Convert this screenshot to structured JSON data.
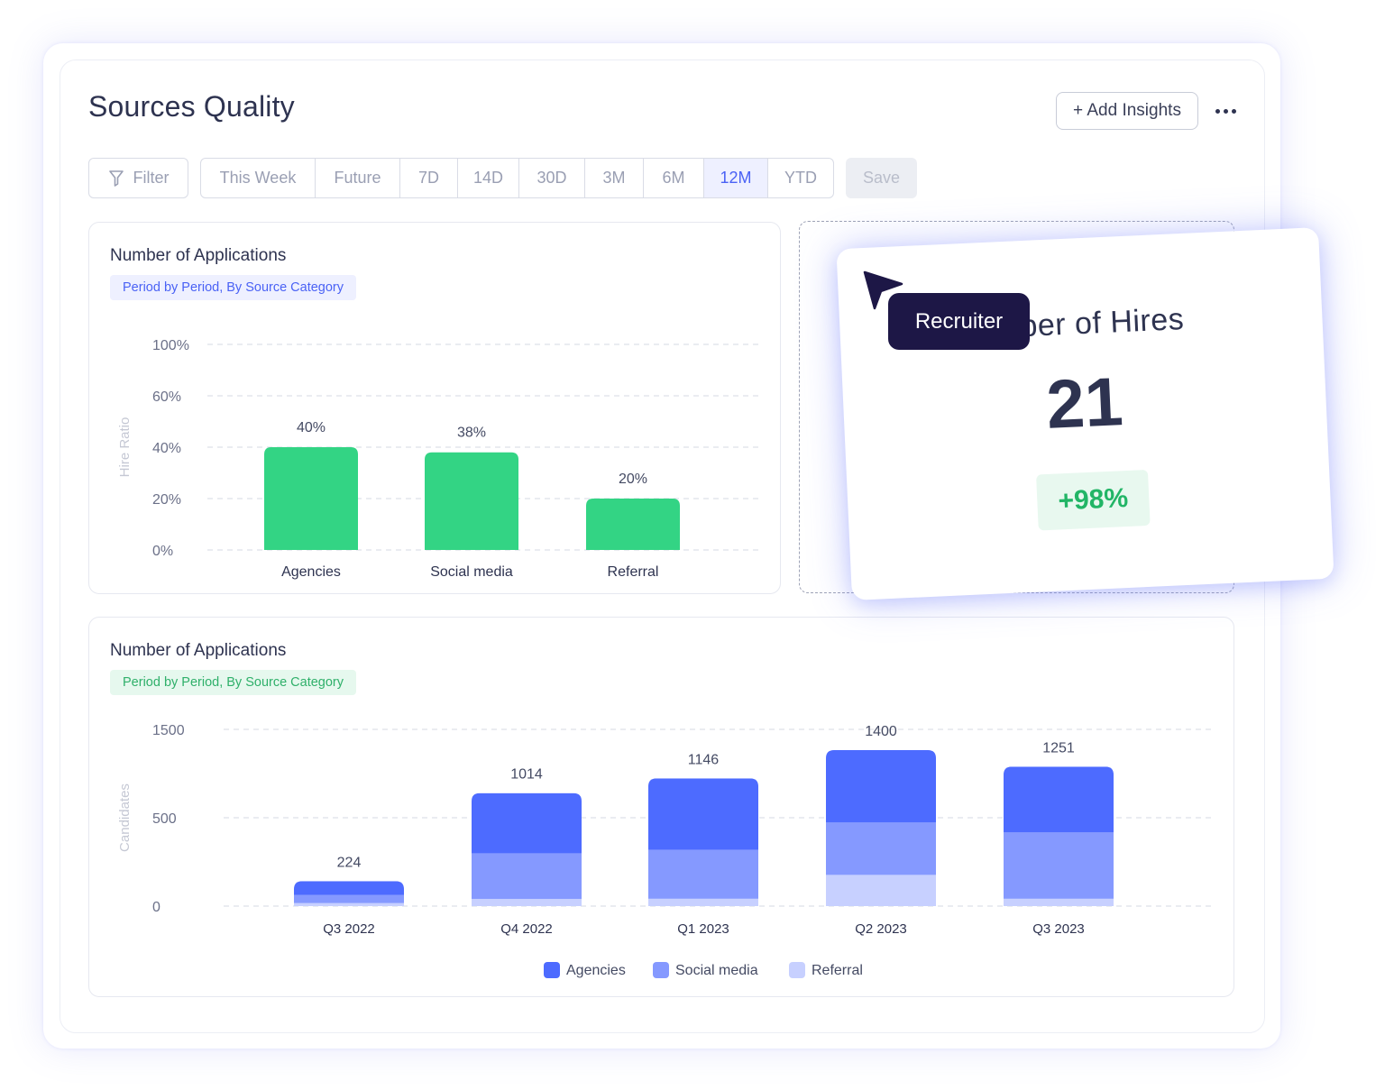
{
  "header": {
    "title": "Sources Quality",
    "add_insights_label": "+ Add Insights"
  },
  "toolbar": {
    "filter_label": "Filter",
    "periods": [
      "This Week",
      "Future",
      "7D",
      "14D",
      "30D",
      "3M",
      "6M",
      "12M",
      "YTD"
    ],
    "active_period": "12M",
    "save_label": "Save"
  },
  "card_hire_ratio": {
    "title": "Number of Applications",
    "subtitle": "Period by Period, By Source Category"
  },
  "card_candidates": {
    "title": "Number of Applications",
    "subtitle": "Period by Period, By Source Category"
  },
  "hires_card": {
    "title": "ber of Hires",
    "value": "21",
    "change": "+98%"
  },
  "cursor_tag": {
    "label": "Recruiter"
  },
  "colors": {
    "accent": "#4a62f5",
    "green_bar": "#33d484",
    "agencies": "#4d6bff",
    "social_media": "#8599ff",
    "referral": "#c7d0ff"
  },
  "chart_data": [
    {
      "type": "bar",
      "categories": [
        "Agencies",
        "Social media",
        "Referral"
      ],
      "values": [
        40,
        38,
        20
      ],
      "value_labels": [
        "40%",
        "38%",
        "20%"
      ],
      "ylabel": "Hire Ratio",
      "yticks": [
        "0%",
        "20%",
        "40%",
        "60%",
        "100%"
      ],
      "grid": true
    },
    {
      "type": "bar",
      "stacked": true,
      "categories": [
        "Q3 2022",
        "Q4 2022",
        "Q1 2023",
        "Q2 2023",
        "Q3 2023"
      ],
      "totals": [
        224,
        1014,
        1146,
        1400,
        1251
      ],
      "series": [
        {
          "name": "Agencies",
          "values": [
            125,
            540,
            640,
            650,
            590
          ]
        },
        {
          "name": "Social media",
          "values": [
            72,
            410,
            440,
            470,
            595
          ]
        },
        {
          "name": "Referral",
          "values": [
            27,
            64,
            66,
            280,
            66
          ]
        }
      ],
      "ylabel": "Candidates",
      "yticks": [
        "0",
        "500",
        "1500"
      ],
      "legend": "bottom-center",
      "grid": true
    }
  ]
}
